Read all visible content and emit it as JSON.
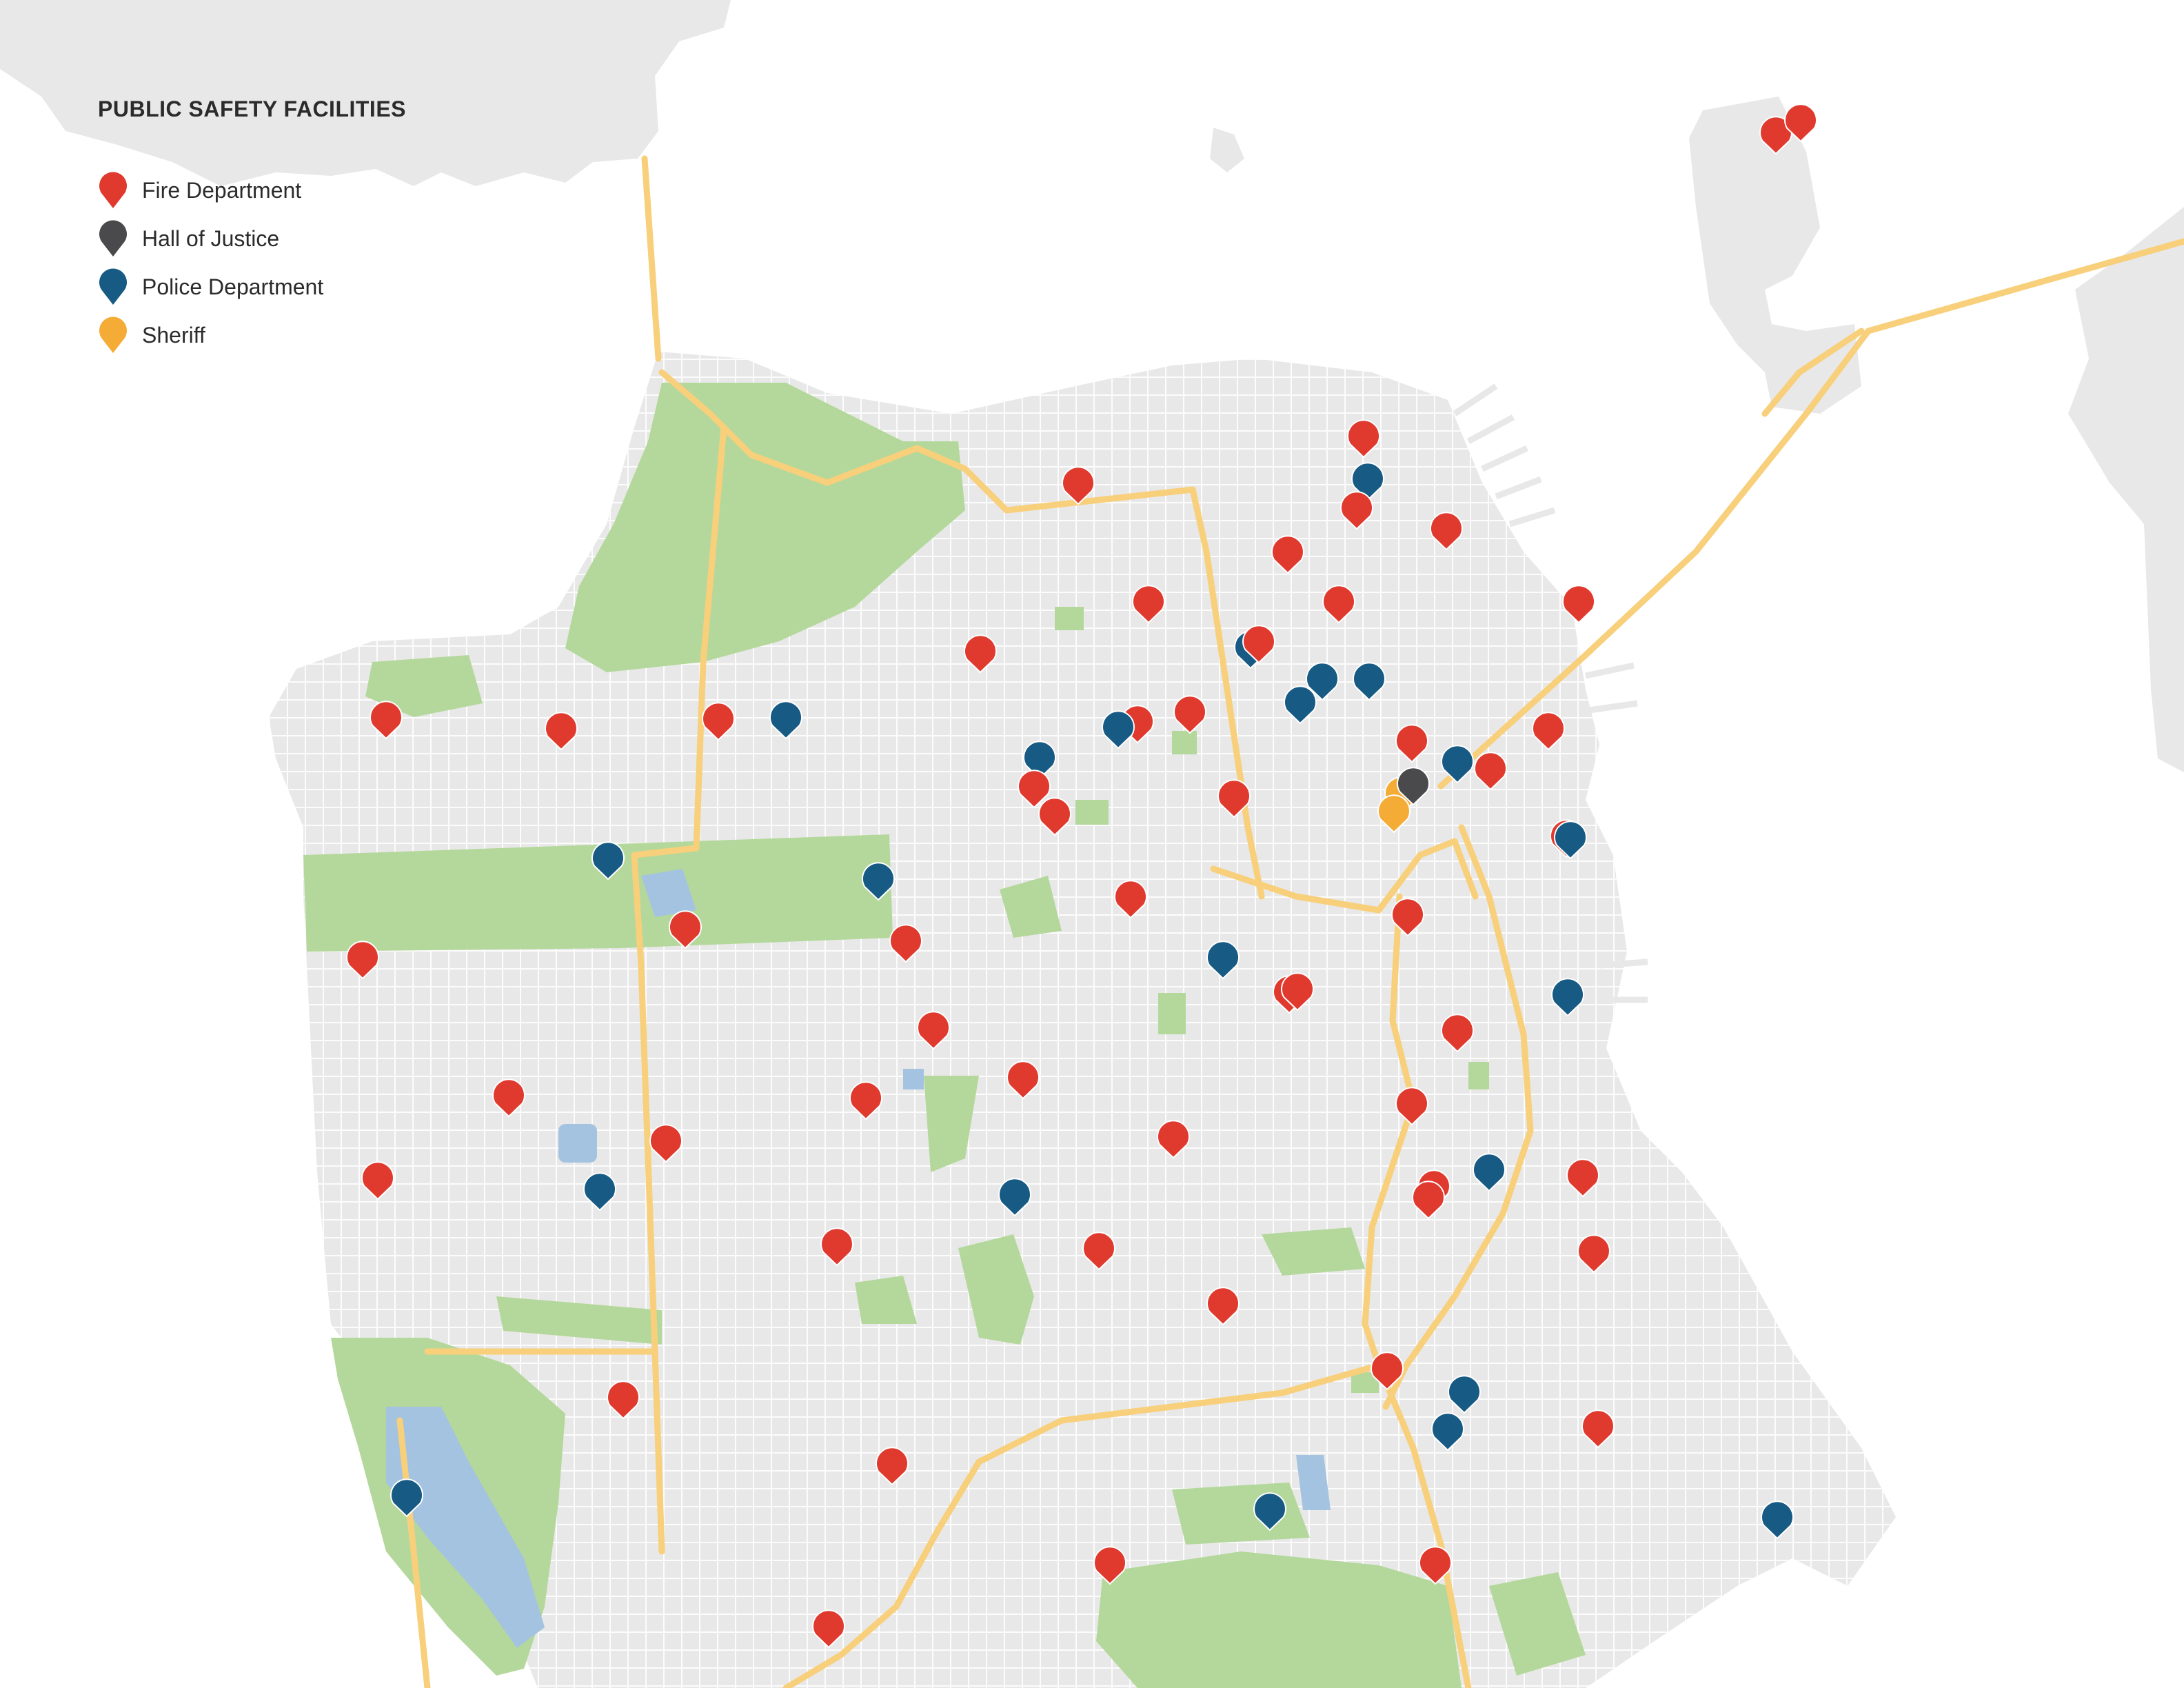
{
  "legend": {
    "title": "PUBLIC SAFETY FACILITIES",
    "items": [
      {
        "key": "fire",
        "label": "Fire Department",
        "color": "#e03a2f",
        "icon": "map-pin-icon"
      },
      {
        "key": "hall",
        "label": "Hall of Justice",
        "color": "#4a4a4d",
        "icon": "map-pin-icon"
      },
      {
        "key": "police",
        "label": "Police Department",
        "color": "#175a84",
        "icon": "map-pin-icon"
      },
      {
        "key": "sheriff",
        "label": "Sheriff",
        "color": "#f5ac37",
        "icon": "map-pin-icon"
      }
    ]
  },
  "map_colors": {
    "land": "#e8e8e8",
    "streets": "#ffffff",
    "parks": "#b4d89b",
    "water": "#a4c3e0",
    "highways": "#f8cf7a"
  }
}
